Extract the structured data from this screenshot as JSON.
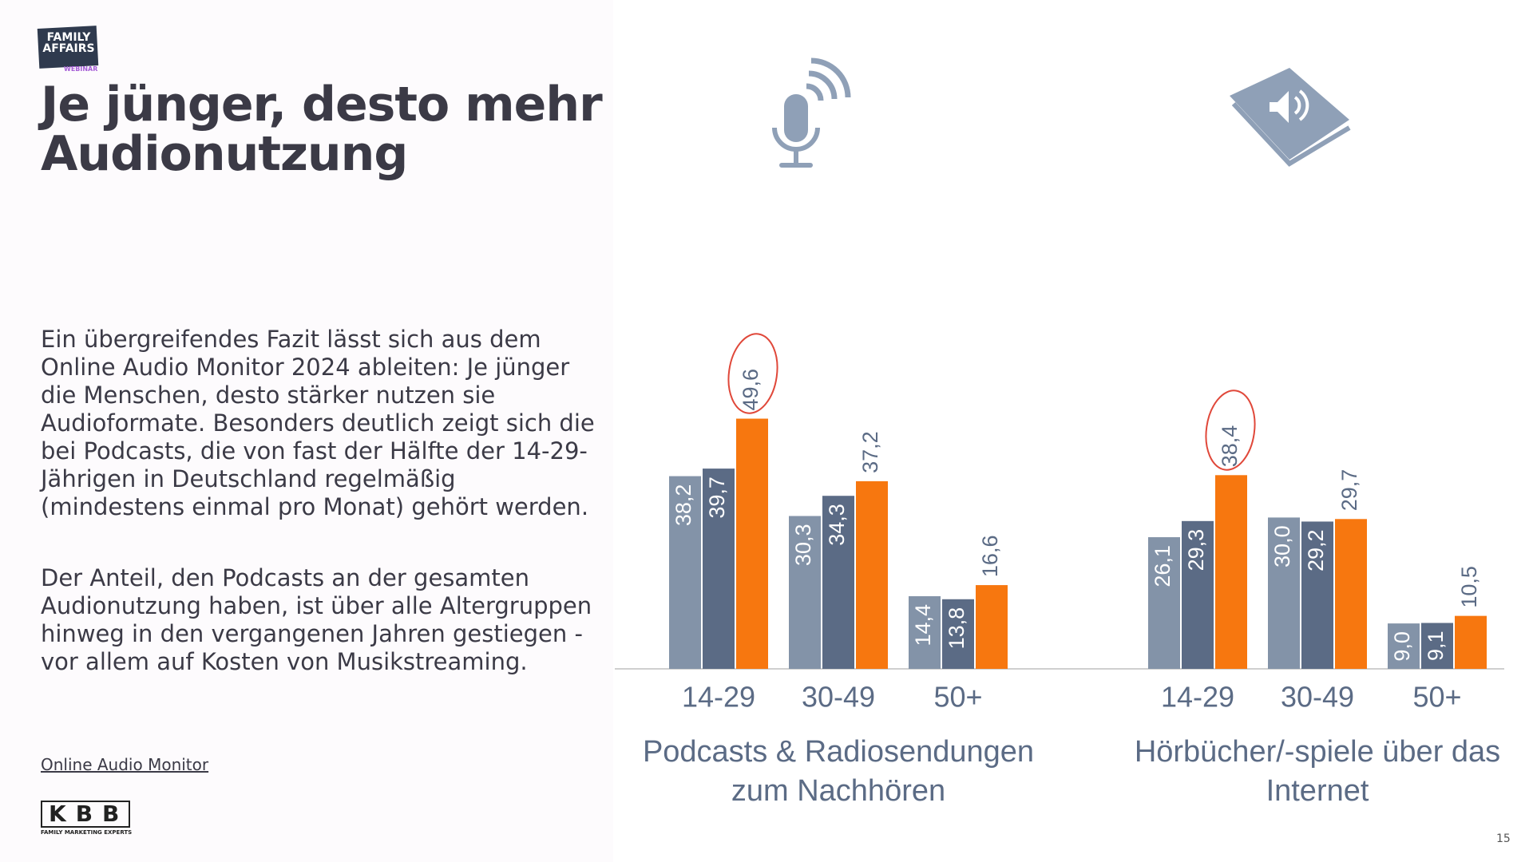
{
  "logo": {
    "name": "FAMILY AFFAIRS",
    "sub": "WEBINAR"
  },
  "title": "Je jünger, desto mehr Audionutzung",
  "body": [
    "Ein übergreifendes Fazit lässt sich aus dem Online Audio Monitor 2024 ableiten: Je jünger die Menschen, desto stärker nutzen sie Audioformate. Besonders deutlich zeigt sich die bei Podcasts, die von fast der Hälfte der 14-29-Jährigen in Deutschland regelmäßig (mindestens einmal pro Monat) gehört werden.",
    "Der Anteil, den Podcasts an der gesamten Audionutzung haben, ist über alle Altergruppen hinweg in den vergangenen Jahren gestiegen - vor allem auf Kosten von Musikstreaming."
  ],
  "link": "Online Audio Monitor",
  "footer_logo": {
    "name": "KBB",
    "sub": "FAMILY MARKETING EXPERTS"
  },
  "page_number": "15",
  "chart_data": [
    {
      "type": "bar",
      "title": "Podcasts & Radiosendungen zum Nachhören",
      "categories": [
        "14-29",
        "30-49",
        "50+"
      ],
      "ylim": [
        0,
        50
      ],
      "series": [
        {
          "color": "#8393a8",
          "values": [
            38.2,
            30.3,
            14.4
          ],
          "value_labels": [
            "38,2",
            "30,3",
            "14,4"
          ]
        },
        {
          "color": "#5b6b85",
          "values": [
            39.7,
            34.3,
            13.8
          ],
          "value_labels": [
            "39,7",
            "34,3",
            "13,8"
          ]
        },
        {
          "color": "#f7770f",
          "values": [
            49.6,
            37.2,
            16.6
          ],
          "value_labels": [
            "49,6",
            "37,2",
            "16,6"
          ]
        }
      ]
    },
    {
      "type": "bar",
      "title": "Hörbücher/-spiele über das Internet",
      "categories": [
        "14-29",
        "30-49",
        "50+"
      ],
      "ylim": [
        0,
        50
      ],
      "series": [
        {
          "color": "#8393a8",
          "values": [
            26.1,
            30.0,
            9.0
          ],
          "value_labels": [
            "26,1",
            "30,0",
            "9,0"
          ]
        },
        {
          "color": "#5b6b85",
          "values": [
            29.3,
            29.2,
            9.1
          ],
          "value_labels": [
            "29,3",
            "29,2",
            "9,1"
          ]
        },
        {
          "color": "#f7770f",
          "values": [
            38.4,
            29.7,
            10.5
          ],
          "value_labels": [
            "38,4",
            "29,7",
            "10,5"
          ]
        }
      ]
    }
  ]
}
